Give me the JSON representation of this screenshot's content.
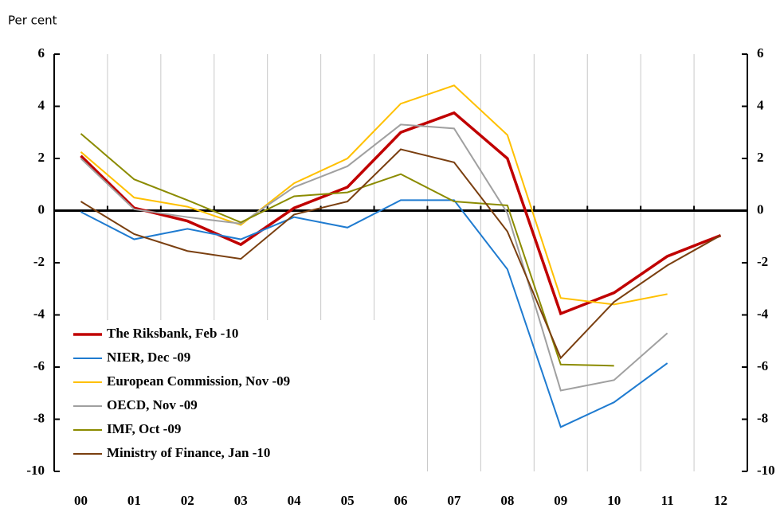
{
  "chart_data": {
    "type": "line",
    "y_axis_label": "Per cent",
    "categories": [
      "00",
      "01",
      "02",
      "03",
      "04",
      "05",
      "06",
      "07",
      "08",
      "09",
      "10",
      "11",
      "12"
    ],
    "series": [
      {
        "name": "The Riksbank, Feb -10",
        "color": "#c00000",
        "values": [
          2.1,
          0.1,
          -0.4,
          -1.3,
          0.1,
          0.9,
          3.0,
          3.75,
          2.0,
          -3.95,
          -3.15,
          -1.75,
          -0.95
        ]
      },
      {
        "name": "NIER, Dec -09",
        "color": "#1f7bd0",
        "values": [
          -0.05,
          -1.1,
          -0.7,
          -1.1,
          -0.25,
          -0.65,
          0.4,
          0.4,
          -2.25,
          -8.3,
          -7.35,
          -5.85,
          null
        ]
      },
      {
        "name": "European Commission, Nov -09",
        "color": "#ffc000",
        "values": [
          2.25,
          0.5,
          0.15,
          -0.55,
          1.05,
          2.0,
          4.1,
          4.8,
          2.9,
          -3.35,
          -3.6,
          -3.2,
          null
        ]
      },
      {
        "name": "OECD, Nov -09",
        "color": "#a0a0a0",
        "values": [
          2.0,
          0.05,
          -0.25,
          -0.5,
          0.9,
          1.7,
          3.3,
          3.15,
          -0.1,
          -6.9,
          -6.5,
          -4.7,
          null
        ]
      },
      {
        "name": "IMF, Oct -09",
        "color": "#8b8b00",
        "values": [
          2.95,
          1.2,
          0.4,
          -0.45,
          0.55,
          0.7,
          1.4,
          0.35,
          0.2,
          -5.9,
          -5.95,
          null,
          null
        ]
      },
      {
        "name": "Ministry of Finance, Jan -10",
        "color": "#7a3f10",
        "values": [
          0.35,
          -0.9,
          -1.55,
          -1.85,
          -0.15,
          0.35,
          2.35,
          1.85,
          -0.8,
          -5.65,
          -3.5,
          -2.1,
          -0.95
        ]
      }
    ],
    "ylim": [
      -10,
      6
    ],
    "yticks": [
      -10,
      -8,
      -6,
      -4,
      -2,
      0,
      2,
      4,
      6
    ],
    "y2lim": [
      -10,
      6
    ],
    "y2ticks": [
      -10,
      -8,
      -6,
      -4,
      -2,
      0,
      2,
      4,
      6
    ],
    "grid": true,
    "legend_position": "lower left"
  }
}
